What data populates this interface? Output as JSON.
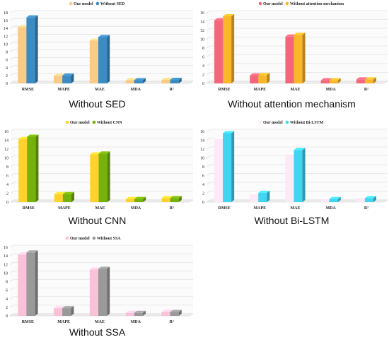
{
  "chart_data": [
    {
      "type": "bar",
      "caption": "Without SED",
      "categories": [
        "RMSE",
        "MAPE",
        "MAE",
        "MDA",
        "R²"
      ],
      "series": [
        {
          "name": "Our model",
          "values": [
            14.3,
            1.9,
            10.9,
            0.8,
            0.9
          ]
        },
        {
          "name": "Without SED",
          "values": [
            16.8,
            2.0,
            11.8,
            0.8,
            0.9
          ]
        }
      ],
      "colors": [
        "#f9cb87",
        "#3c8bc3"
      ],
      "ylim": [
        0,
        18
      ],
      "yticks": [
        0,
        2,
        4,
        6,
        8,
        10,
        12,
        14,
        16,
        18
      ],
      "grid": true,
      "legend": "top"
    },
    {
      "type": "bar",
      "caption": "Without attention mechanism",
      "categories": [
        "RMSE",
        "MAPE",
        "MAE",
        "MDA",
        "R²"
      ],
      "series": [
        {
          "name": "Our model",
          "values": [
            14.3,
            1.8,
            10.6,
            0.7,
            0.9
          ]
        },
        {
          "name": "Without attention mechanism",
          "values": [
            15.2,
            1.9,
            11.0,
            0.7,
            0.9
          ]
        }
      ],
      "colors": [
        "#f3667c",
        "#fbb72c"
      ],
      "ylim": [
        0,
        16
      ],
      "yticks": [
        0,
        2,
        4,
        6,
        8,
        10,
        12,
        14,
        16
      ],
      "grid": true,
      "legend": "top"
    },
    {
      "type": "bar",
      "caption": "Without CNN",
      "categories": [
        "RMSE",
        "MAPE",
        "MAE",
        "MDA",
        "R²"
      ],
      "series": [
        {
          "name": "Our model",
          "values": [
            14.3,
            1.8,
            10.8,
            0.7,
            0.9
          ]
        },
        {
          "name": "Without CNN",
          "values": [
            14.8,
            1.8,
            11.0,
            0.7,
            0.9
          ]
        }
      ],
      "colors": [
        "#fed22d",
        "#76b20c"
      ],
      "ylim": [
        0,
        16
      ],
      "yticks": [
        0,
        2,
        4,
        6,
        8,
        10,
        12,
        14,
        16
      ],
      "grid": true,
      "legend": "top"
    },
    {
      "type": "bar",
      "caption": "Without Bi-LSTM",
      "categories": [
        "RMSE",
        "MAPE",
        "MAE",
        "MDA",
        "R²"
      ],
      "series": [
        {
          "name": "Our model",
          "values": [
            14.3,
            1.8,
            10.8,
            0.7,
            0.9
          ]
        },
        {
          "name": "Without Bi-LSTM",
          "values": [
            15.6,
            2.1,
            11.8,
            0.7,
            0.9
          ]
        }
      ],
      "colors": [
        "#fde8f8",
        "#41d5f1"
      ],
      "ylim": [
        0,
        16
      ],
      "yticks": [
        0,
        2,
        4,
        6,
        8,
        10,
        12,
        14,
        16
      ],
      "grid": true,
      "legend": "top"
    },
    {
      "type": "bar",
      "caption": "Without SSA",
      "categories": [
        "RMSE",
        "MAPE",
        "MAE",
        "MDA",
        "R²"
      ],
      "series": [
        {
          "name": "Our model",
          "values": [
            14.3,
            1.8,
            10.8,
            0.7,
            0.9
          ]
        },
        {
          "name": "Without SSA",
          "values": [
            14.8,
            1.8,
            11.0,
            0.7,
            0.9
          ]
        }
      ],
      "colors": [
        "#fac2d8",
        "#9a9a9a"
      ],
      "ylim": [
        0,
        16
      ],
      "yticks": [
        0,
        2,
        4,
        6,
        8,
        10,
        12,
        14,
        16
      ],
      "grid": true,
      "legend": "top"
    }
  ]
}
